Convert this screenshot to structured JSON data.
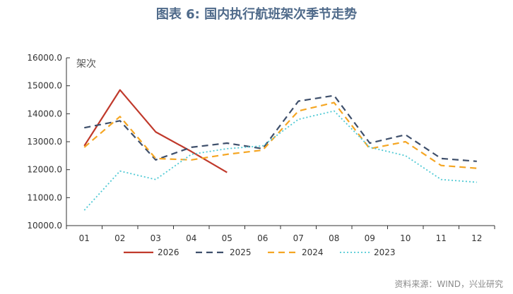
{
  "title": "图表 6: 国内执行航班架次季节走势",
  "source": "资料来源：WIND，兴业研究",
  "chart_data": {
    "type": "line",
    "title": "图表 6: 国内执行航班架次季节走势",
    "ylabel": "架次",
    "xlabel": "",
    "categories": [
      "01",
      "02",
      "03",
      "04",
      "05",
      "06",
      "07",
      "08",
      "09",
      "10",
      "11",
      "12"
    ],
    "ylim": [
      10000,
      16000
    ],
    "yticks": [
      10000,
      11000,
      12000,
      13000,
      14000,
      15000,
      16000
    ],
    "ytick_labels": [
      "10000.0",
      "11000.0",
      "12000.0",
      "13000.0",
      "14000.0",
      "15000.0",
      "16000.0"
    ],
    "grid": false,
    "legend_position": "bottom",
    "series": [
      {
        "name": "2026",
        "color": "#c0392b",
        "style": "solid",
        "values": [
          12850,
          14850,
          13350,
          12650,
          11900,
          null,
          null,
          null,
          null,
          null,
          null,
          null
        ]
      },
      {
        "name": "2025",
        "color": "#3e4f6b",
        "style": "dashed",
        "values": [
          13500,
          13750,
          12350,
          12800,
          12950,
          12750,
          14450,
          14650,
          12950,
          13250,
          12400,
          12300
        ]
      },
      {
        "name": "2024",
        "color": "#f5a623",
        "style": "dashed",
        "values": [
          12800,
          13900,
          12400,
          12350,
          12550,
          12700,
          14100,
          14400,
          12750,
          13000,
          12150,
          12050
        ]
      },
      {
        "name": "2023",
        "color": "#4ec9d4",
        "style": "dotted",
        "values": [
          10550,
          11950,
          11650,
          12550,
          12750,
          12850,
          13800,
          14100,
          12800,
          12500,
          11650,
          11550
        ]
      }
    ]
  }
}
